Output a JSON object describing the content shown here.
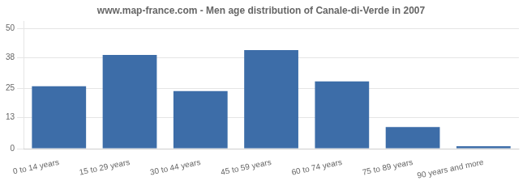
{
  "chart_data": {
    "type": "bar",
    "title": "www.map-france.com - Men age distribution of Canale-di-Verde in 2007",
    "categories": [
      "0 to 14 years",
      "15 to 29 years",
      "30 to 44 years",
      "45 to 59 years",
      "60 to 74 years",
      "75 to 89 years",
      "90 years and more"
    ],
    "values": [
      26,
      39,
      24,
      41,
      28,
      9,
      1
    ],
    "color": "#3d6da8",
    "ylim": [
      0,
      53
    ],
    "yticks": [
      0,
      13,
      25,
      38,
      50
    ],
    "grid": true
  }
}
